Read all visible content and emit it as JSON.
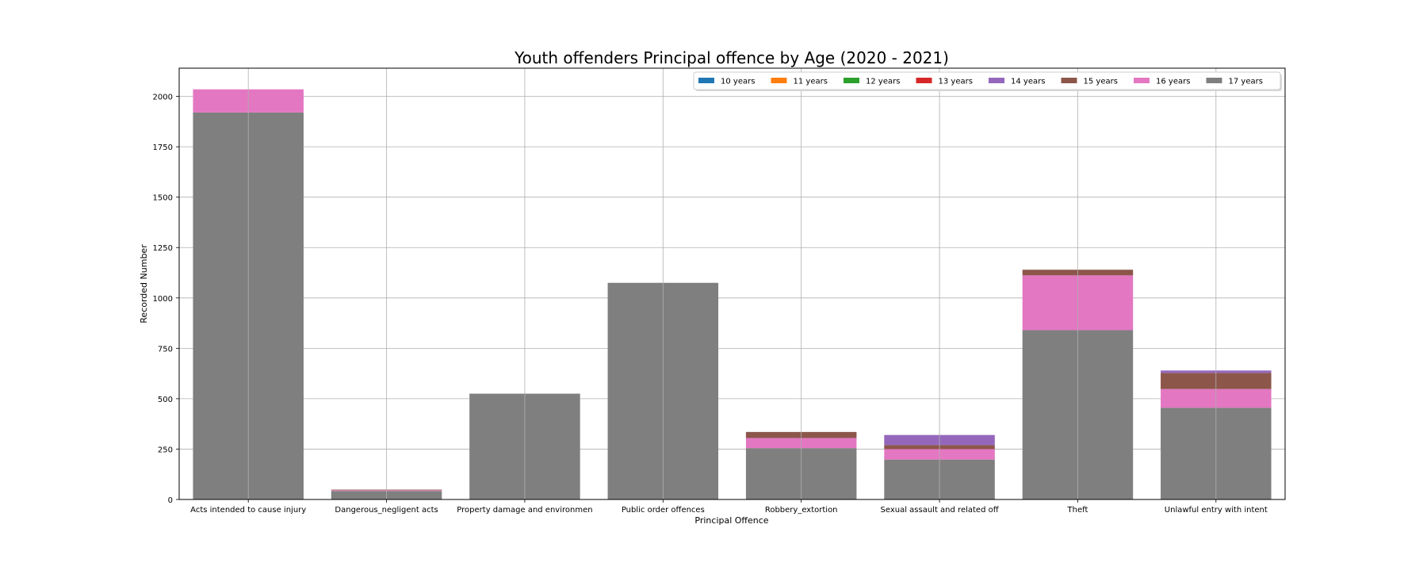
{
  "chart_data": {
    "type": "bar",
    "stacked": true,
    "title": "Youth offenders Principal offence by Age (2020 - 2021)",
    "xlabel": "Principal Offence",
    "ylabel": "Recorded Number",
    "ylim": [
      0,
      2140
    ],
    "yticks": [
      0,
      250,
      500,
      750,
      1000,
      1250,
      1500,
      1750,
      2000
    ],
    "grid": true,
    "legend_position": "top-right",
    "categories": [
      "Acts intended to cause injury",
      "Dangerous_negligent acts",
      "Property damage and environmen",
      "Public order offences",
      "Robbery_extortion",
      "Sexual assault and related off",
      "Theft",
      "Unlawful entry with intent"
    ],
    "series": [
      {
        "name": "17 years",
        "color": "#7f7f7f",
        "values": [
          1920,
          42,
          525,
          1075,
          255,
          198,
          840,
          455
        ]
      },
      {
        "name": "16 years",
        "color": "#e377c2",
        "values": [
          115,
          4,
          0,
          0,
          50,
          52,
          272,
          93
        ]
      },
      {
        "name": "15 years",
        "color": "#8c564b",
        "values": [
          0,
          3,
          0,
          0,
          30,
          20,
          28,
          80
        ]
      },
      {
        "name": "14 years",
        "color": "#9467bd",
        "values": [
          0,
          0,
          0,
          0,
          0,
          50,
          0,
          12
        ]
      },
      {
        "name": "13 years",
        "color": "#d62728",
        "values": [
          0,
          0,
          0,
          0,
          0,
          0,
          0,
          0
        ]
      },
      {
        "name": "12 years",
        "color": "#2ca02c",
        "values": [
          0,
          0,
          0,
          0,
          0,
          0,
          0,
          0
        ]
      },
      {
        "name": "11 years",
        "color": "#ff7f0e",
        "values": [
          0,
          0,
          0,
          0,
          0,
          0,
          0,
          0
        ]
      },
      {
        "name": "10 years",
        "color": "#1f77b4",
        "values": [
          0,
          0,
          0,
          0,
          0,
          0,
          0,
          0
        ]
      }
    ],
    "legend_order": [
      "10 years",
      "11 years",
      "12 years",
      "13 years",
      "14 years",
      "15 years",
      "16 years",
      "17 years"
    ]
  }
}
